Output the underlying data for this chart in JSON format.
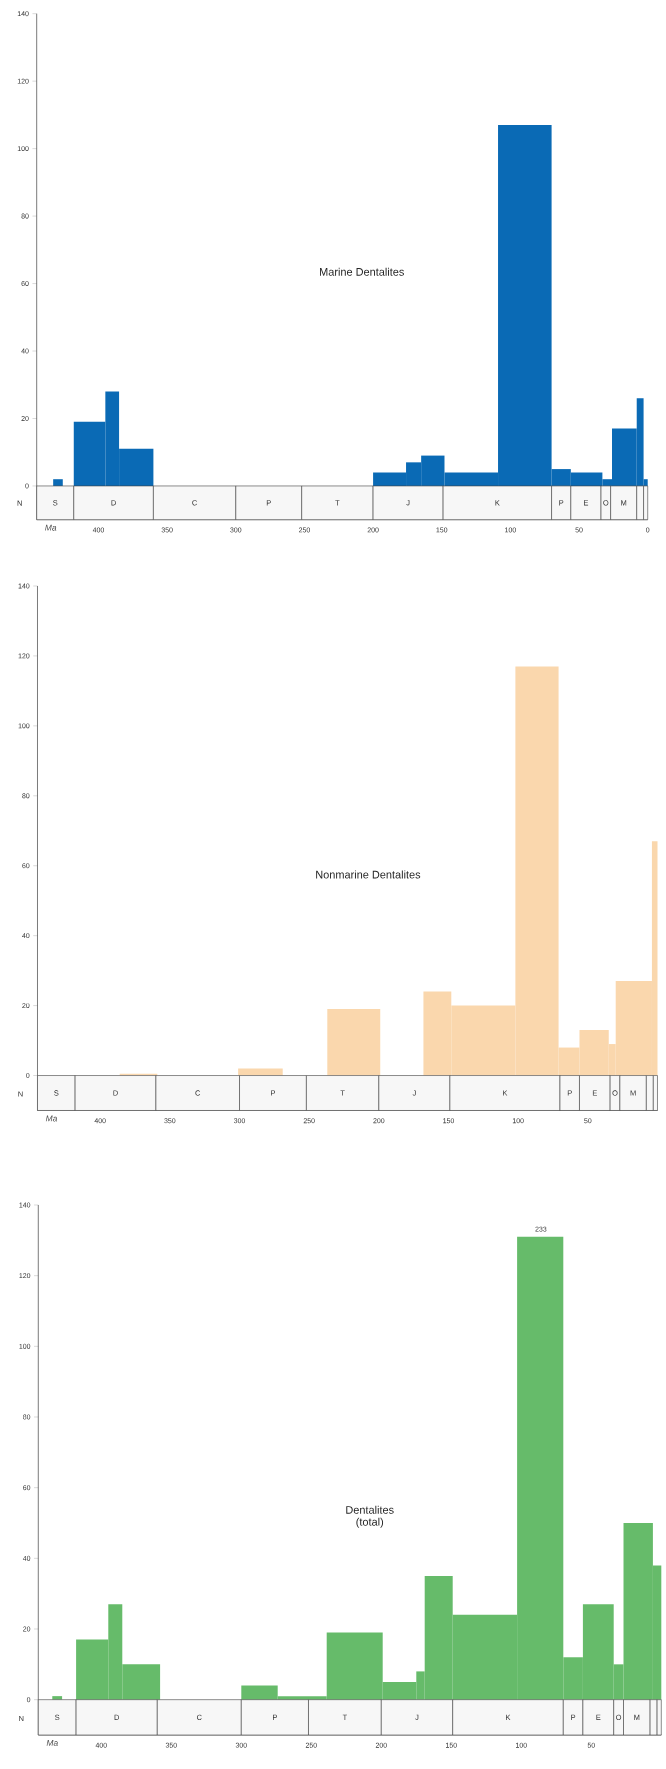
{
  "chart_data": [
    {
      "type": "histogram",
      "title": "Marine Dentalites",
      "xlabel": "Ma",
      "ylabel": "N",
      "color": "#0a6ab5",
      "bins": [
        433,
        426,
        418,
        395,
        385,
        360,
        200,
        176,
        165,
        148,
        109,
        70,
        56,
        33,
        26,
        8,
        3,
        0
      ],
      "values": [
        2,
        0,
        19,
        28,
        11,
        0,
        4,
        7,
        9,
        4,
        107,
        5,
        4,
        2,
        17,
        26,
        2
      ],
      "xlim": [
        445,
        0
      ],
      "xticks": [
        400,
        350,
        300,
        250,
        200,
        150,
        100,
        50,
        0
      ],
      "ylim": [
        -10,
        140
      ],
      "yticks": [
        0,
        20,
        40,
        60,
        80,
        100,
        120,
        140
      ],
      "bands": [
        {
          "axis": "x",
          "from": 445,
          "to": 418,
          "label": "S",
          "color": "#f7f7f7"
        },
        {
          "axis": "x",
          "from": 418,
          "to": 360,
          "label": "D",
          "color": "#f7f7f7"
        },
        {
          "axis": "x",
          "from": 360,
          "to": 300,
          "label": "C",
          "color": "#f7f7f7"
        },
        {
          "axis": "x",
          "from": 300,
          "to": 252,
          "label": "P",
          "color": "#f7f7f7"
        },
        {
          "axis": "x",
          "from": 252,
          "to": 200,
          "label": "T",
          "color": "#f7f7f7"
        },
        {
          "axis": "x",
          "from": 200,
          "to": 149,
          "label": "J",
          "color": "#f7f7f7"
        },
        {
          "axis": "x",
          "from": 149,
          "to": 70,
          "label": "K",
          "color": "#f7f7f7"
        },
        {
          "axis": "x",
          "from": 70,
          "to": 56,
          "label": "P",
          "color": "#f7f7f7"
        },
        {
          "axis": "x",
          "from": 56,
          "to": 34,
          "label": "E",
          "color": "#f7f7f7"
        },
        {
          "axis": "x",
          "from": 34,
          "to": 27,
          "label": "O",
          "color": "#f7f7f7"
        },
        {
          "axis": "x",
          "from": 27,
          "to": 8,
          "label": "M",
          "color": "#f7f7f7"
        },
        {
          "axis": "x",
          "from": 8,
          "to": 3,
          "color": "#f7f7f7"
        },
        {
          "axis": "x",
          "from": 3,
          "to": 0,
          "color": "#f7f7f7"
        }
      ]
    },
    {
      "type": "histogram",
      "title": "Nonmarine Dentalites",
      "xlabel": "Ma",
      "ylabel": "N",
      "color": "#fad7ad",
      "bins": [
        386,
        359,
        301,
        269,
        237,
        199,
        168,
        148,
        102,
        71,
        56,
        35,
        30,
        4,
        0
      ],
      "values": [
        0.5,
        0,
        2,
        0,
        19,
        0,
        24,
        20,
        117,
        8,
        13,
        9,
        27,
        67
      ],
      "xlim": [
        445,
        0
      ],
      "xticks": [
        400,
        350,
        300,
        250,
        200,
        150,
        100,
        50
      ],
      "ylim": [
        -10,
        140
      ],
      "yticks": [
        0,
        20,
        40,
        60,
        80,
        100,
        120,
        140
      ],
      "bands": [
        {
          "axis": "x",
          "from": 445,
          "to": 418,
          "label": "S",
          "color": "#f7f7f7"
        },
        {
          "axis": "x",
          "from": 418,
          "to": 360,
          "label": "D",
          "color": "#f7f7f7"
        },
        {
          "axis": "x",
          "from": 360,
          "to": 300,
          "label": "C",
          "color": "#f7f7f7"
        },
        {
          "axis": "x",
          "from": 300,
          "to": 252,
          "label": "P",
          "color": "#f7f7f7"
        },
        {
          "axis": "x",
          "from": 252,
          "to": 200,
          "label": "T",
          "color": "#f7f7f7"
        },
        {
          "axis": "x",
          "from": 200,
          "to": 149,
          "label": "J",
          "color": "#f7f7f7"
        },
        {
          "axis": "x",
          "from": 149,
          "to": 70,
          "label": "K",
          "color": "#f7f7f7"
        },
        {
          "axis": "x",
          "from": 70,
          "to": 56,
          "label": "P",
          "color": "#f7f7f7"
        },
        {
          "axis": "x",
          "from": 56,
          "to": 34,
          "label": "E",
          "color": "#f7f7f7"
        },
        {
          "axis": "x",
          "from": 34,
          "to": 27,
          "label": "O",
          "color": "#f7f7f7"
        },
        {
          "axis": "x",
          "from": 27,
          "to": 8,
          "label": "M",
          "color": "#f7f7f7"
        },
        {
          "axis": "x",
          "from": 8,
          "to": 3,
          "color": "#f7f7f7"
        },
        {
          "axis": "x",
          "from": 3,
          "to": 0,
          "color": "#f7f7f7"
        }
      ]
    },
    {
      "type": "histogram",
      "title": "Dentalites",
      "subtitle": "(total)",
      "xlabel": "Ma",
      "ylabel": "N",
      "color": "#66bb6a",
      "bins": [
        435,
        428,
        418,
        395,
        385,
        358,
        300,
        274,
        239,
        199,
        175,
        169,
        149,
        103,
        70,
        56,
        34,
        27,
        6,
        0
      ],
      "values": [
        1,
        0,
        17,
        27,
        10,
        0,
        4,
        1,
        19,
        5,
        8,
        35,
        24,
        131,
        12,
        27,
        10,
        50,
        38
      ],
      "xlim": [
        445,
        0
      ],
      "xticks": [
        400,
        350,
        300,
        250,
        200,
        150,
        100,
        50
      ],
      "ylim": [
        -10,
        140
      ],
      "yticks": [
        0,
        20,
        40,
        60,
        80,
        100,
        120,
        140
      ],
      "annotations": [
        {
          "text": "233",
          "x": 86,
          "y": 131
        }
      ],
      "bands": [
        {
          "axis": "x",
          "from": 445,
          "to": 418,
          "label": "S",
          "color": "#f7f7f7"
        },
        {
          "axis": "x",
          "from": 418,
          "to": 360,
          "label": "D",
          "color": "#f7f7f7"
        },
        {
          "axis": "x",
          "from": 360,
          "to": 300,
          "label": "C",
          "color": "#f7f7f7"
        },
        {
          "axis": "x",
          "from": 300,
          "to": 252,
          "label": "P",
          "color": "#f7f7f7"
        },
        {
          "axis": "x",
          "from": 252,
          "to": 200,
          "label": "T",
          "color": "#f7f7f7"
        },
        {
          "axis": "x",
          "from": 200,
          "to": 149,
          "label": "J",
          "color": "#f7f7f7"
        },
        {
          "axis": "x",
          "from": 149,
          "to": 70,
          "label": "K",
          "color": "#f7f7f7"
        },
        {
          "axis": "x",
          "from": 70,
          "to": 56,
          "label": "P",
          "color": "#f7f7f7"
        },
        {
          "axis": "x",
          "from": 56,
          "to": 34,
          "label": "E",
          "color": "#f7f7f7"
        },
        {
          "axis": "x",
          "from": 34,
          "to": 27,
          "label": "O",
          "color": "#f7f7f7"
        },
        {
          "axis": "x",
          "from": 27,
          "to": 8,
          "label": "M",
          "color": "#f7f7f7"
        },
        {
          "axis": "x",
          "from": 8,
          "to": 3,
          "color": "#f7f7f7"
        },
        {
          "axis": "x",
          "from": 3,
          "to": 0,
          "color": "#f7f7f7"
        }
      ]
    }
  ]
}
